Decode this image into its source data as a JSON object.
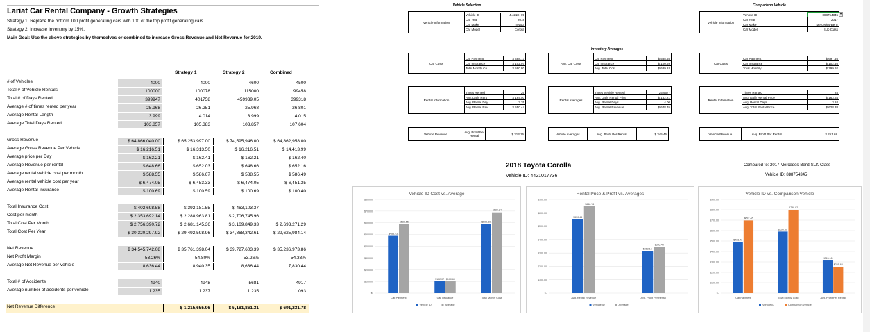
{
  "header": {
    "title": "Lariat Car Rental Company - Growth Strategies",
    "strategy1": "Strategy 1: Replace the bottom 100 profit generating cars with 100 of the top profit generating cars.",
    "strategy2": "Strategy 2: Increase Inventory by 15%.",
    "main_goal": "Main Goal: Use the above strategies by themselves or combined to increase Gross Revenue and Net Revenue for 2019."
  },
  "table": {
    "columns": [
      "",
      "Strategy 1",
      "Strategy 2",
      "Combined"
    ],
    "rows": [
      {
        "label": "# of Vehicles",
        "v": [
          "4000",
          "4000",
          "4600",
          "4500"
        ]
      },
      {
        "label": "Total # of Vehicle Rentals",
        "v": [
          "100000",
          "100078",
          "115000",
          "99458"
        ]
      },
      {
        "label": "Total # of Days Rented",
        "v": [
          "399947",
          "401758",
          "459939.05",
          "399318"
        ]
      },
      {
        "label": "Average # of times rented per year",
        "v": [
          "25.968",
          "26.251",
          "25.968",
          "26.801"
        ]
      },
      {
        "label": "Average Rental Length",
        "v": [
          "3.999",
          "4.014",
          "3.999",
          "4.015"
        ]
      },
      {
        "label": "Average Total Days Rented",
        "v": [
          "103.857",
          "105.383",
          "103.857",
          "107.604"
        ]
      },
      {
        "label": "Gross Revenue",
        "v": [
          "$ 64,866,040.00",
          "$ 65,253,997.00",
          "$ 74,595,946.00",
          "$ 64,862,958.00"
        ]
      },
      {
        "label": "Average Gross Revenue Per Vehicle",
        "v": [
          "$      16,216.51",
          "$      16,313.50",
          "$      16,216.51",
          "$      14,413.99"
        ]
      },
      {
        "label": "Average price per Day",
        "v": [
          "$           162.21",
          "$           162.41",
          "$           162.21",
          "$           162.40"
        ]
      },
      {
        "label": "Average Revenue per rental",
        "v": [
          "$           648.66",
          "$           652.03",
          "$           648.66",
          "$           652.16"
        ]
      },
      {
        "label": "Average rental vehicle cost per month",
        "v": [
          "$           588.55",
          "$           586.67",
          "$           588.55",
          "$           586.49"
        ]
      },
      {
        "label": "Average rental vehicle cost per year",
        "v": [
          "$        6,474.05",
          "$        6,453.33",
          "$        6,474.05",
          "$        6,451.35"
        ]
      },
      {
        "label": "Average Rental Insurance",
        "v": [
          "$           100.69",
          "$           100.59",
          "$           100.69",
          "$           100.40"
        ]
      },
      {
        "label": "Total Insurance Cost",
        "v": [
          "$    402,698.58",
          "$    392,181.55",
          "$    463,103.37",
          ""
        ]
      },
      {
        "label": "Cost per month",
        "v": [
          "$ 2,353,692.14",
          "$ 2,288,963.81",
          "$ 2,706,745.96",
          ""
        ]
      },
      {
        "label": "Total Cost Per Month",
        "v": [
          "$ 2,756,390.72",
          "$ 2,681,145.36",
          "$ 3,169,849.33",
          "$ 2,693,271.29"
        ]
      },
      {
        "label": "Total Cost Per Year",
        "v": [
          "$ 30,320,297.92",
          "$ 29,492,598.96",
          "$ 34,868,342.61",
          "$ 29,625,984.14"
        ]
      },
      {
        "label": "Net Revenue",
        "v": [
          "$ 34,545,742.08",
          "$ 35,761,398.04",
          "$ 39,727,603.39",
          "$ 35,236,973.86"
        ]
      },
      {
        "label": "Net Profit Margin",
        "v": [
          "53.26%",
          "54.80%",
          "53.26%",
          "54.33%"
        ]
      },
      {
        "label": "Average Net Revenue per vehicle",
        "v": [
          "8,636.44",
          "8,940.35",
          "8,636.44",
          "7,830.44"
        ]
      },
      {
        "label": "Total # of Accidents",
        "v": [
          "4940",
          "4948",
          "5681",
          "4917"
        ]
      },
      {
        "label": "Average number of accidents per vehicle",
        "v": [
          "1.235",
          "1.237",
          "1.235",
          "1.093"
        ]
      },
      {
        "label": "Net Revenue Difference",
        "v": [
          "",
          "$   1,215,655.96",
          "$   5,181,861.31",
          "$      691,231.78"
        ]
      }
    ]
  },
  "vehicle_selection": {
    "title": "Vehicle Selection",
    "label": "Vehicle Information",
    "rows": [
      [
        "Vehicle ID",
        "4.421E+09"
      ],
      [
        "Car Year",
        "2018"
      ],
      [
        "Car Make",
        "Toyota"
      ],
      [
        "Car Model",
        "Corolla"
      ]
    ]
  },
  "comparison_vehicle": {
    "title": "Comparison Vehicle",
    "label": "Vehicle Information",
    "rows": [
      [
        "Vehicle ID",
        "888754345"
      ],
      [
        "Car Year",
        "2017"
      ],
      [
        "Car Make",
        "Mercedes-Benz"
      ],
      [
        "Car Model",
        "SLK-Class"
      ]
    ]
  },
  "inventory_averages": {
    "title": "Inventory Averages"
  },
  "car_costs": {
    "label": "Car Costs",
    "rows": [
      [
        "Car Payment",
        "$   488.73"
      ],
      [
        "Car Insurance",
        "$   102.07"
      ],
      [
        "Total Montly Co",
        "$   590.80"
      ]
    ]
  },
  "avg_car_costs": {
    "label": "Avg. Car Costs",
    "rows": [
      [
        "Car Payment",
        "$   588.55"
      ],
      [
        "Car Insurance",
        "$   100.69"
      ],
      [
        "Avg. Total Cost",
        "$   689.24"
      ]
    ]
  },
  "cmp_car_costs": {
    "label": "Car Costs",
    "rows": [
      [
        "Car Payment",
        "$        697.46"
      ],
      [
        "Car Insurance",
        "$        102.46"
      ],
      [
        "Total Monthly",
        "$        799.92"
      ]
    ]
  },
  "rental_info": {
    "label": "Rental Information",
    "rows": [
      [
        "Times Rented",
        "26"
      ],
      [
        "Avg. Daily Rent",
        "$   164.50"
      ],
      [
        "Avg. Rental Day",
        "3.35"
      ],
      [
        "Avg. Rental Rev",
        "$   550.44"
      ]
    ]
  },
  "rental_averages": {
    "label": "Rental Averages",
    "rows": [
      [
        "Times Vehicle Rented",
        "25.9677"
      ],
      [
        "Avg. Daily Rental Price",
        "$   162.21"
      ],
      [
        "Avg. Rental Days",
        "4.00"
      ],
      [
        "Avg. Rental Revenue",
        "$   648.76"
      ]
    ]
  },
  "cmp_rental_info": {
    "label": "Rental Information",
    "rows": [
      [
        "Times Rented",
        "25"
      ],
      [
        "Avg. Daily Rental Price",
        "$   163.64"
      ],
      [
        "Avg. Rental Days",
        "3.84"
      ],
      [
        "Avg. Total Rental Price",
        "$   628.38"
      ]
    ]
  },
  "vehicle_revenue": {
    "label": "Vehicle Revenue",
    "key": "Avg. Profit Per Rental",
    "value": "$   313.16"
  },
  "vehicle_averages": {
    "label": "Vehicle Averages",
    "key": "Avg. Profit Per Rental",
    "value": "$   345.46"
  },
  "cmp_vehicle_revenue": {
    "label": "Vehicle Revenue",
    "key": "Avg. Profit Per Rental",
    "value": "$        251.68"
  },
  "heading": {
    "main": "2018 Toyota Corolla",
    "vid": "Vehicle ID: 4421017736",
    "compared": "Compared to: 2017 Mercedes-Benz SLK-Class",
    "cmp_vid": "Vehicle ID: 888754345"
  },
  "colors": {
    "blue": "#1f63c4",
    "gray": "#a5a5a5",
    "orange": "#ed7d31"
  },
  "chart_data": [
    {
      "type": "bar",
      "title": "Vehicle ID Cost vs. Average",
      "categories": [
        "Car Payment",
        "Car Insurance",
        "Total Montly Cost"
      ],
      "series": [
        {
          "name": "Vehicle ID",
          "values": [
            488.73,
            102.07,
            590.8
          ]
        },
        {
          "name": "Average",
          "values": [
            588.55,
            100.69,
            689.24
          ]
        }
      ],
      "ylim": [
        0,
        800
      ],
      "yticks": [
        "$-",
        "$100.00",
        "$200.00",
        "$300.00",
        "$400.00",
        "$500.00",
        "$600.00",
        "$700.00",
        "$800.00"
      ],
      "data_labels": [
        [
          "$488.73",
          "$102.07",
          "$590.80"
        ],
        [
          "$588.55",
          "$100.69",
          "$689.24"
        ]
      ]
    },
    {
      "type": "bar",
      "title": "Rental Price & Profit vs. Averages",
      "categories": [
        "Avg. Rental Revenue",
        "Avg. Profit Per Rental"
      ],
      "series": [
        {
          "name": "Vehicle ID",
          "values": [
            550.44,
            313.16
          ]
        },
        {
          "name": "Average",
          "values": [
            648.76,
            345.46
          ]
        }
      ],
      "ylim": [
        0,
        700
      ],
      "yticks": [
        "$-",
        "$100.00",
        "$200.00",
        "$300.00",
        "$400.00",
        "$500.00",
        "$600.00",
        "$700.00"
      ],
      "data_labels": [
        [
          "$550.44",
          "$313.16"
        ],
        [
          "$648.76",
          "$345.46"
        ]
      ]
    },
    {
      "type": "bar",
      "title": "Vehicle ID vs. Comparison Vehicle",
      "categories": [
        "Car Payment",
        "Total Montly Cost",
        "Avg. Profit Per Rental"
      ],
      "series": [
        {
          "name": "Vehicle ID",
          "values": [
            488.73,
            590.8,
            313.16
          ]
        },
        {
          "name": "Comparison Vehicle",
          "values": [
            697.46,
            799.92,
            251.68
          ]
        }
      ],
      "ylim": [
        0,
        900
      ],
      "yticks": [
        "$-",
        "$100.00",
        "$200.00",
        "$300.00",
        "$400.00",
        "$500.00",
        "$600.00",
        "$700.00",
        "$800.00",
        "$900.00"
      ],
      "data_labels": [
        [
          "$488.73",
          "$590.80",
          "$313.16"
        ],
        [
          "$697.46",
          "$799.92",
          "$251.68"
        ]
      ]
    }
  ]
}
